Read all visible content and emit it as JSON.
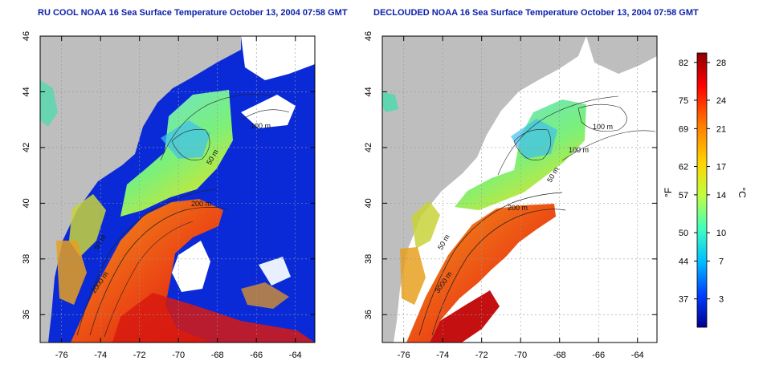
{
  "panels": [
    {
      "id": "left",
      "title": "RU COOL NOAA 16 Sea Surface Temperature October 13, 2004 07:58 GMT",
      "contour_labels": [
        "100 m",
        "50 m",
        "200 m",
        "50 m",
        "2000 m"
      ]
    },
    {
      "id": "right",
      "title": "DECLOUDED NOAA 16 Sea Surface Temperature October 13, 2004 07:58 GMT",
      "contour_labels": [
        "100 m",
        "100 m",
        "50 m",
        "200 m",
        "50 m",
        "3000 m"
      ]
    }
  ],
  "axes": {
    "x_ticks": [
      "-76",
      "-74",
      "-72",
      "-70",
      "-68",
      "-66",
      "-64"
    ],
    "y_ticks": [
      "46",
      "44",
      "42",
      "40",
      "38",
      "36"
    ],
    "x_values": [
      -76,
      -74,
      -72,
      -70,
      -68,
      -66,
      -64
    ],
    "y_values": [
      46,
      44,
      42,
      40,
      38,
      36
    ],
    "lon_range": [
      -77.1,
      -63
    ],
    "lat_range": [
      35,
      46
    ]
  },
  "colorbar": {
    "left_label": "°F",
    "right_label": "°C",
    "fahrenheit_ticks": [
      "82",
      "75",
      "69",
      "62",
      "57",
      "50",
      "44",
      "37"
    ],
    "celsius_ticks": [
      "28",
      "24",
      "21",
      "17",
      "14",
      "10",
      "7",
      "3"
    ],
    "celsius_values": [
      28,
      24,
      21,
      17,
      14,
      10,
      7,
      3
    ],
    "range_c": [
      0,
      29
    ],
    "colors": [
      "#8b0000",
      "#ff0000",
      "#ff7a00",
      "#ffd400",
      "#bfff3f",
      "#3fffbf",
      "#00bfff",
      "#0040ff",
      "#00008f"
    ]
  },
  "colors": {
    "title": "#0a1fa8",
    "land": "#bebebe",
    "deep_ocean": "#0a2ad8",
    "cloud": "#ffffff",
    "warm_stream": "#e83a12",
    "shelf": "#4fd6c0"
  }
}
